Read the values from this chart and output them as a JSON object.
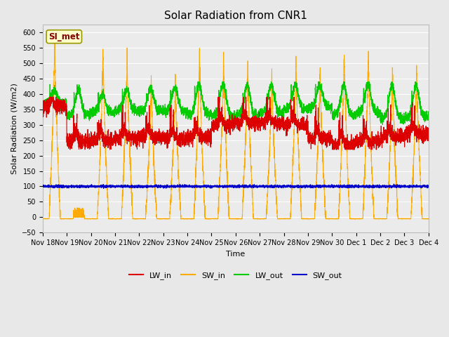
{
  "title": "Solar Radiation from CNR1",
  "xlabel": "Time",
  "ylabel": "Solar Radiation (W/m2)",
  "ylim": [
    -50,
    625
  ],
  "yticks": [
    -50,
    0,
    50,
    100,
    150,
    200,
    250,
    300,
    350,
    400,
    450,
    500,
    550,
    600
  ],
  "colors": {
    "LW_in": "#dd0000",
    "SW_in": "#ffaa00",
    "LW_out": "#00cc00",
    "SW_out": "#0000cc"
  },
  "legend_label": "SI_met",
  "legend_box_facecolor": "#ffffcc",
  "legend_box_edgecolor": "#999900",
  "fig_facecolor": "#e8e8e8",
  "ax_facecolor": "#ebebeb",
  "grid_color": "#ffffff",
  "n_days": 16,
  "sw_in_amplitudes": [
    590,
    20,
    565,
    540,
    450,
    455,
    550,
    530,
    525,
    485,
    525,
    480,
    550,
    550,
    490,
    500
  ],
  "sw_in_night": -5,
  "sw_out_base": 100,
  "title_fontsize": 11,
  "axis_fontsize": 8,
  "tick_fontsize": 7,
  "legend_fontsize": 8
}
